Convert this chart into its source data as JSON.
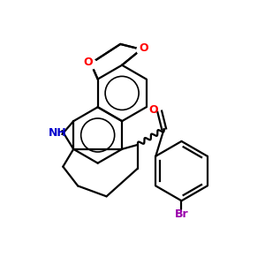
{
  "bg_color": "#ffffff",
  "atom_colors": {
    "O": "#ff0000",
    "N": "#0000cd",
    "Br": "#9900aa",
    "C": "#000000"
  },
  "lw": 1.6
}
